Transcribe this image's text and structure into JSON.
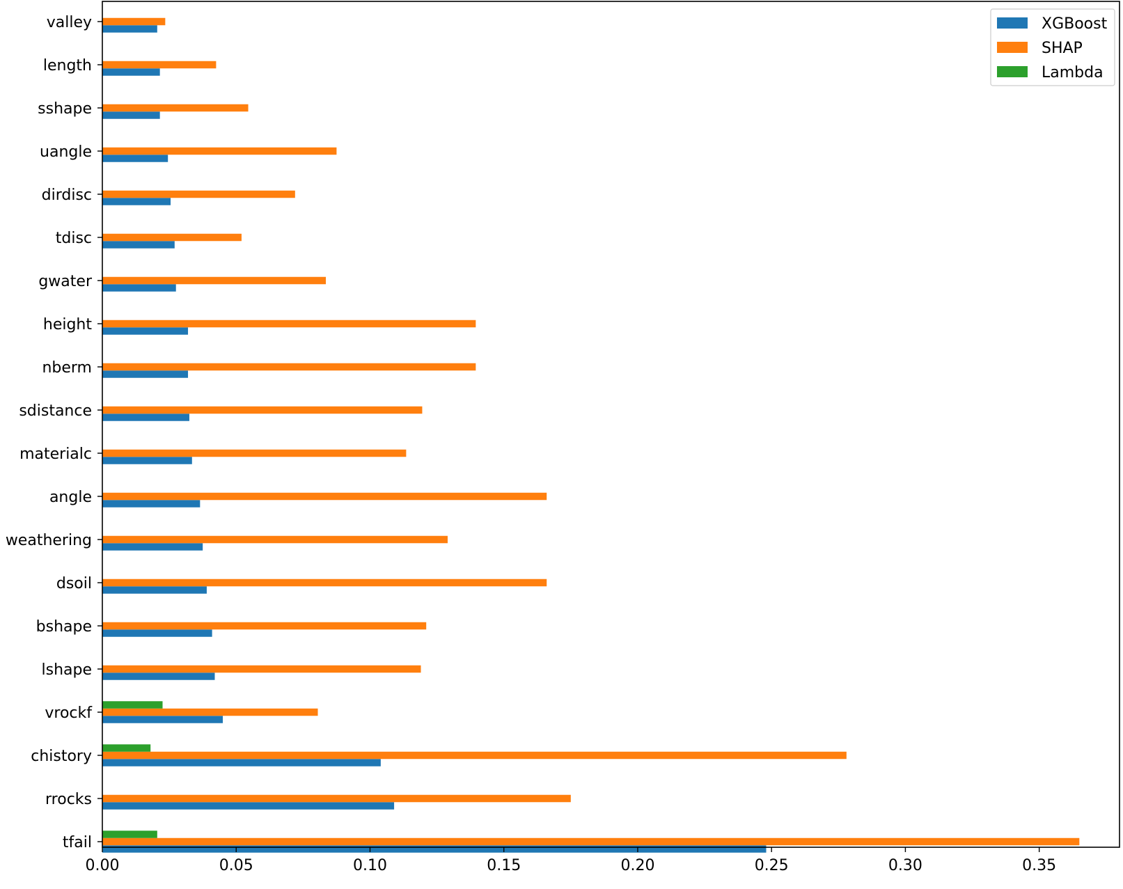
{
  "chart_data": {
    "type": "bar",
    "orientation": "horizontal",
    "title": "",
    "xlabel": "",
    "ylabel": "",
    "xlim": [
      0,
      0.38
    ],
    "xticks": [
      0.0,
      0.05,
      0.1,
      0.15,
      0.2,
      0.25,
      0.3,
      0.35
    ],
    "xtick_labels": [
      "0.00",
      "0.05",
      "0.10",
      "0.15",
      "0.20",
      "0.25",
      "0.30",
      "0.35"
    ],
    "grid": false,
    "legend_position": "top-right",
    "categories": [
      "tfail",
      "rrocks",
      "chistory",
      "vrockf",
      "lshape",
      "bshape",
      "dsoil",
      "weathering",
      "angle",
      "materialc",
      "sdistance",
      "nberm",
      "height",
      "gwater",
      "tdisc",
      "dirdisc",
      "uangle",
      "sshape",
      "length",
      "valley"
    ],
    "series": [
      {
        "name": "XGBoost",
        "color": "#1f77b4",
        "values": [
          0.248,
          0.109,
          0.104,
          0.045,
          0.042,
          0.041,
          0.039,
          0.0375,
          0.0365,
          0.0335,
          0.0325,
          0.032,
          0.032,
          0.0275,
          0.027,
          0.0255,
          0.0245,
          0.0215,
          0.0215,
          0.0205
        ]
      },
      {
        "name": "SHAP",
        "color": "#ff7f0e",
        "values": [
          0.365,
          0.175,
          0.278,
          0.0805,
          0.119,
          0.121,
          0.166,
          0.129,
          0.166,
          0.1135,
          0.1195,
          0.1395,
          0.1395,
          0.0835,
          0.052,
          0.072,
          0.0875,
          0.0545,
          0.0425,
          0.0235
        ]
      },
      {
        "name": "Lambda",
        "color": "#2ca02c",
        "values": [
          0.0205,
          0.0,
          0.018,
          0.0225,
          0.0,
          0.0,
          0.0,
          0.0,
          0.0,
          0.0,
          0.0,
          0.0,
          0.0,
          0.0,
          0.0,
          0.0,
          0.0,
          0.0,
          0.0,
          0.0
        ]
      }
    ]
  }
}
